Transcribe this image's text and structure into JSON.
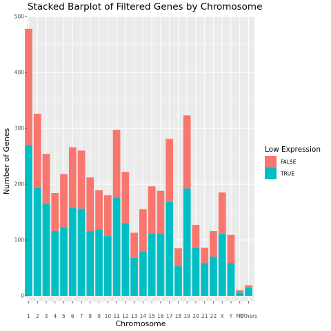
{
  "chart_data": {
    "type": "bar",
    "stacked": true,
    "title": "Stacked Barplot of Filtered Genes by Chromosome",
    "xlabel": "Chromosome",
    "ylabel": "Number of Genes",
    "ylim": [
      0,
      500
    ],
    "yticks": [
      0,
      100,
      200,
      300,
      400,
      500
    ],
    "grid": true,
    "legend_position": "right",
    "legend_title": "Low Expression",
    "categories": [
      "1",
      "2",
      "3",
      "4",
      "5",
      "6",
      "7",
      "8",
      "9",
      "10",
      "11",
      "12",
      "13",
      "14",
      "15",
      "16",
      "17",
      "18",
      "19",
      "20",
      "21",
      "22",
      "X",
      "Y",
      "MT",
      "Others"
    ],
    "series": [
      {
        "name": "FALSE",
        "color": "#F8766D",
        "values": [
          208,
          133,
          89,
          68,
          95,
          108,
          104,
          96,
          70,
          73,
          121,
          92,
          45,
          76,
          84,
          76,
          113,
          32,
          131,
          41,
          27,
          46,
          74,
          50,
          4,
          5
        ]
      },
      {
        "name": "TRUE",
        "color": "#00BFC4",
        "values": [
          270,
          193,
          165,
          116,
          123,
          158,
          156,
          116,
          119,
          107,
          176,
          130,
          68,
          79,
          112,
          112,
          168,
          53,
          192,
          86,
          59,
          70,
          111,
          59,
          6,
          14
        ]
      }
    ]
  },
  "colors": {
    "panel_bg": "#EBEBEB",
    "grid_major": "#FFFFFF",
    "tick_text": "#4D4D4D"
  }
}
